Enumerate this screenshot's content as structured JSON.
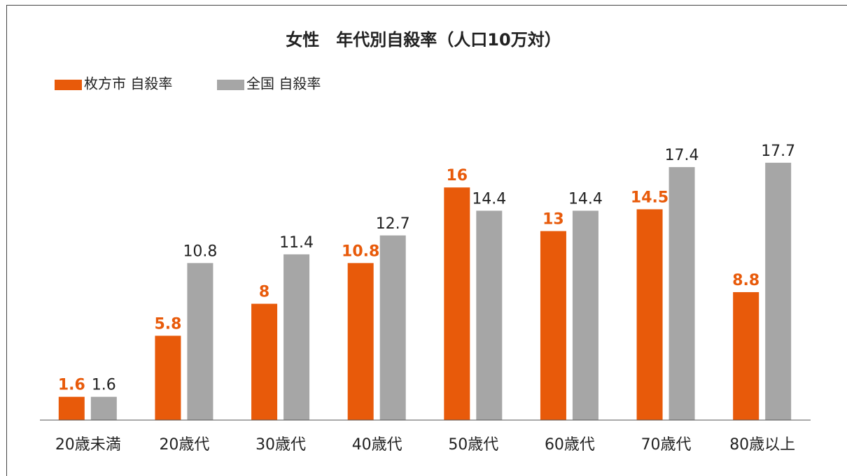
{
  "chart_data": {
    "type": "bar",
    "title": "女性　年代別自殺率（人口10万対）",
    "categories": [
      "20歳未満",
      "20歳代",
      "30歳代",
      "40歳代",
      "50歳代",
      "60歳代",
      "70歳代",
      "80歳以上"
    ],
    "series": [
      {
        "name": "枚方市 自殺率",
        "color": "#e85a0a",
        "values": [
          1.6,
          5.8,
          8,
          10.8,
          16,
          13,
          14.5,
          8.8
        ]
      },
      {
        "name": "全国 自殺率",
        "color": "#a6a6a6",
        "values": [
          1.6,
          10.8,
          11.4,
          12.7,
          14.4,
          14.4,
          17.4,
          17.7
        ]
      }
    ],
    "ylim": [
      0,
      20
    ],
    "legend": "top-left"
  }
}
